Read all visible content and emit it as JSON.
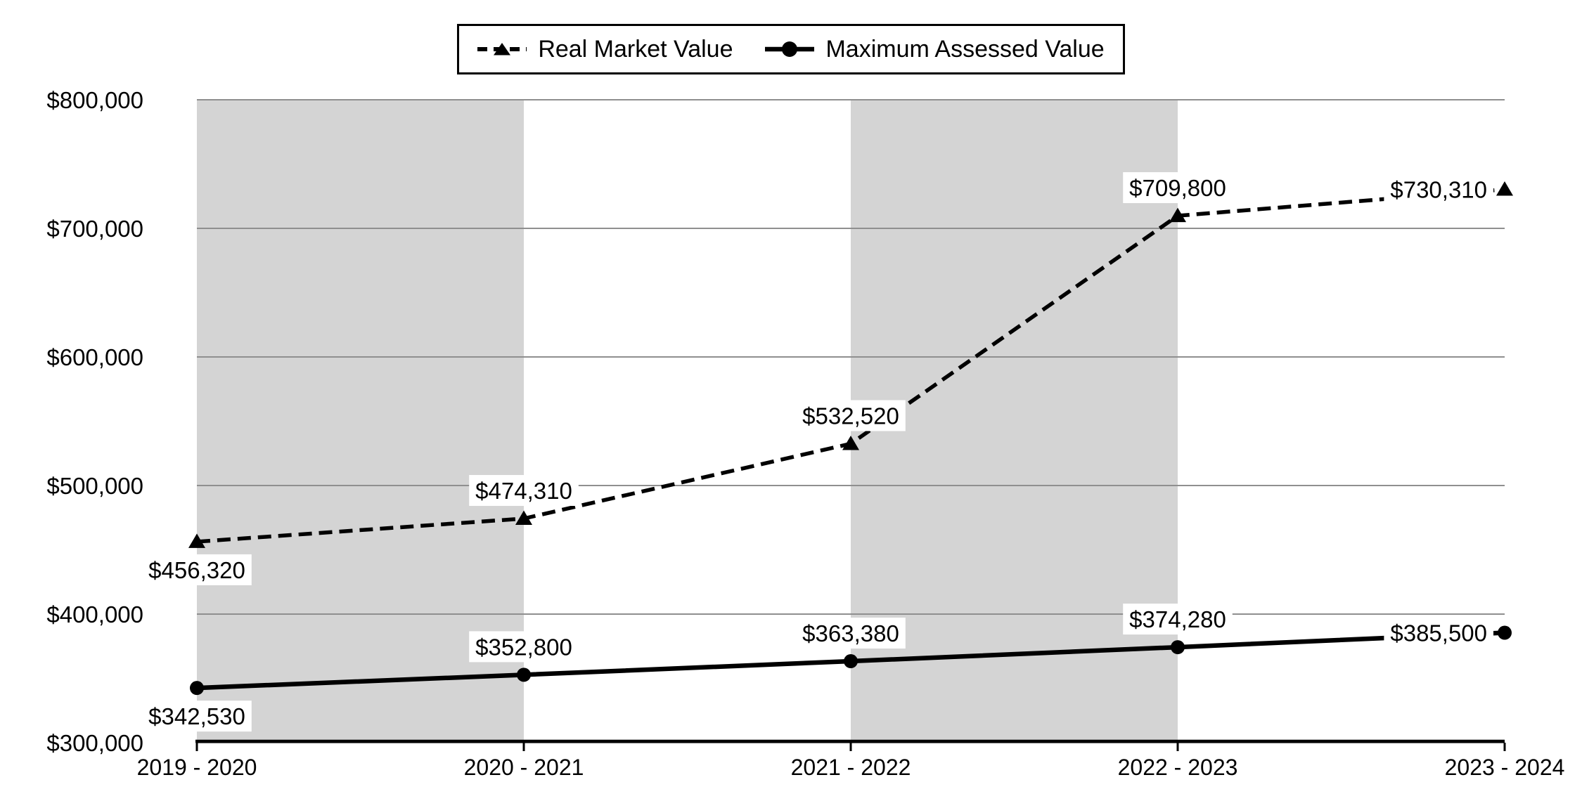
{
  "legend": {
    "items": [
      {
        "label": "Real Market Value"
      },
      {
        "label": "Maximum Assessed Value"
      }
    ]
  },
  "chart_data": {
    "type": "line",
    "title": "",
    "categories": [
      "2019 - 2020",
      "2020 - 2021",
      "2021 - 2022",
      "2022 - 2023",
      "2023 - 2024"
    ],
    "series": [
      {
        "name": "Real Market Value",
        "line_style": "dashed",
        "marker": "triangle",
        "values": [
          456320,
          474310,
          532520,
          709800,
          730310
        ],
        "point_labels": [
          "$456,320",
          "$474,310",
          "$532,520",
          "$709,800",
          "$730,310"
        ],
        "point_label_placement": [
          "below",
          "above",
          "above",
          "above",
          "left"
        ]
      },
      {
        "name": "Maximum Assessed Value",
        "line_style": "solid",
        "marker": "circle",
        "values": [
          342530,
          352800,
          363380,
          374280,
          385500
        ],
        "point_labels": [
          "$342,530",
          "$352,800",
          "$363,380",
          "$374,280",
          "$385,500"
        ],
        "point_label_placement": [
          "below",
          "above",
          "above",
          "above",
          "left"
        ]
      }
    ],
    "y_axis": {
      "min": 300000,
      "max": 800000,
      "tick_interval": 100000,
      "tick_labels": [
        "$300,000",
        "$400,000",
        "$500,000",
        "$600,000",
        "$700,000",
        "$800,000"
      ]
    },
    "grid": true,
    "legend_position": "top",
    "plot_bands": {
      "shaded_category_spans": [
        [
          0,
          1
        ],
        [
          2,
          3
        ]
      ]
    },
    "colors": {
      "series": "#000000",
      "gridline": "#8f8f8f",
      "band": "#d4d4d4",
      "axis": "#000000",
      "label_background": "#ffffff",
      "text": "#000000",
      "background": "#ffffff"
    }
  }
}
